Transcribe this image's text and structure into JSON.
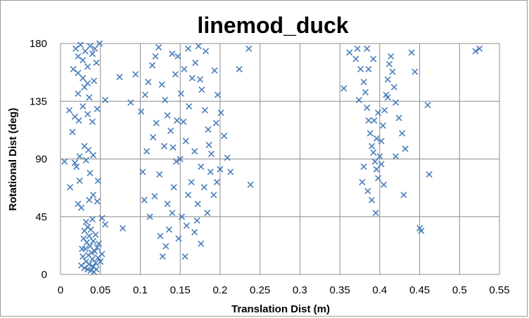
{
  "chart_data": {
    "type": "scatter",
    "title": "linemod_duck",
    "xlabel": "Translation Dist (m)",
    "ylabel": "Rotational Dist (deg)",
    "xlim": [
      0,
      0.55
    ],
    "ylim": [
      0,
      180
    ],
    "x_ticks": [
      "0",
      "0.05",
      "0.1",
      "0.15",
      "0.2",
      "0.25",
      "0.3",
      "0.35",
      "0.4",
      "0.45",
      "0.5",
      "0.55"
    ],
    "y_ticks": [
      "0",
      "45",
      "90",
      "135",
      "180"
    ],
    "grid": true,
    "legend": "none",
    "marker": "x",
    "marker_color": "#4a7ebb",
    "series": [
      {
        "points": [
          [
            0.03,
            5
          ],
          [
            0.034,
            4
          ],
          [
            0.038,
            3
          ],
          [
            0.041,
            6
          ],
          [
            0.036,
            8
          ],
          [
            0.032,
            10
          ],
          [
            0.04,
            12
          ],
          [
            0.044,
            9
          ],
          [
            0.028,
            14
          ],
          [
            0.035,
            15
          ],
          [
            0.039,
            17
          ],
          [
            0.043,
            18
          ],
          [
            0.031,
            20
          ],
          [
            0.037,
            22
          ],
          [
            0.046,
            21
          ],
          [
            0.033,
            25
          ],
          [
            0.041,
            26
          ],
          [
            0.029,
            28
          ],
          [
            0.036,
            30
          ],
          [
            0.044,
            31
          ],
          [
            0.03,
            34
          ],
          [
            0.038,
            35
          ],
          [
            0.047,
            13
          ],
          [
            0.05,
            10
          ],
          [
            0.052,
            16
          ],
          [
            0.026,
            7
          ],
          [
            0.048,
            24
          ],
          [
            0.034,
            37
          ],
          [
            0.042,
            2
          ],
          [
            0.045,
            4
          ],
          [
            0.032,
            41
          ],
          [
            0.04,
            43
          ],
          [
            0.056,
            39
          ],
          [
            0.078,
            36
          ],
          [
            0.022,
            55
          ],
          [
            0.026,
            52
          ],
          [
            0.036,
            58
          ],
          [
            0.046,
            57
          ],
          [
            0.052,
            44
          ],
          [
            0.027,
            20
          ],
          [
            0.024,
            73
          ],
          [
            0.037,
            79
          ],
          [
            0.032,
            89
          ],
          [
            0.047,
            73
          ],
          [
            0.024,
            92
          ],
          [
            0.03,
            100
          ],
          [
            0.035,
            97
          ],
          [
            0.041,
            93
          ],
          [
            0.015,
            111
          ],
          [
            0.023,
            120
          ],
          [
            0.028,
            131
          ],
          [
            0.034,
            125
          ],
          [
            0.04,
            119
          ],
          [
            0.046,
            129
          ],
          [
            0.018,
            123
          ],
          [
            0.022,
            141
          ],
          [
            0.03,
            146
          ],
          [
            0.036,
            138
          ],
          [
            0.042,
            151
          ],
          [
            0.056,
            136
          ],
          [
            0.016,
            160
          ],
          [
            0.022,
            157
          ],
          [
            0.028,
            167
          ],
          [
            0.034,
            162
          ],
          [
            0.04,
            172
          ],
          [
            0.045,
            165
          ],
          [
            0.019,
            176
          ],
          [
            0.025,
            179
          ],
          [
            0.031,
            174
          ],
          [
            0.037,
            178
          ],
          [
            0.043,
            176
          ],
          [
            0.049,
            180
          ],
          [
            0.022,
            170
          ],
          [
            0.028,
            153
          ],
          [
            0.034,
            149
          ],
          [
            0.011,
            128
          ],
          [
            0.005,
            88
          ],
          [
            0.018,
            87
          ],
          [
            0.074,
            154
          ],
          [
            0.094,
            156
          ],
          [
            0.012,
            68
          ],
          [
            0.02,
            84
          ],
          [
            0.041,
            62
          ]
        ]
      },
      {
        "points": [
          [
            0.103,
            80
          ],
          [
            0.105,
            58
          ],
          [
            0.112,
            45
          ],
          [
            0.118,
            61
          ],
          [
            0.124,
            78
          ],
          [
            0.128,
            14
          ],
          [
            0.132,
            22
          ],
          [
            0.136,
            35
          ],
          [
            0.14,
            48
          ],
          [
            0.142,
            68
          ],
          [
            0.145,
            88
          ],
          [
            0.148,
            28
          ],
          [
            0.152,
            45
          ],
          [
            0.156,
            14
          ],
          [
            0.158,
            38
          ],
          [
            0.16,
            62
          ],
          [
            0.164,
            72
          ],
          [
            0.168,
            33
          ],
          [
            0.172,
            55
          ],
          [
            0.176,
            24
          ],
          [
            0.18,
            68
          ],
          [
            0.184,
            48
          ],
          [
            0.188,
            80
          ],
          [
            0.192,
            62
          ],
          [
            0.196,
            72
          ],
          [
            0.101,
            127
          ],
          [
            0.106,
            140
          ],
          [
            0.11,
            150
          ],
          [
            0.115,
            163
          ],
          [
            0.119,
            170
          ],
          [
            0.123,
            177
          ],
          [
            0.127,
            148
          ],
          [
            0.131,
            136
          ],
          [
            0.134,
            124
          ],
          [
            0.138,
            112
          ],
          [
            0.141,
            99
          ],
          [
            0.144,
            156
          ],
          [
            0.147,
            170
          ],
          [
            0.151,
            141
          ],
          [
            0.154,
            119
          ],
          [
            0.157,
            104
          ],
          [
            0.161,
            131
          ],
          [
            0.165,
            153
          ],
          [
            0.169,
            165
          ],
          [
            0.173,
            178
          ],
          [
            0.177,
            144
          ],
          [
            0.181,
            128
          ],
          [
            0.185,
            113
          ],
          [
            0.189,
            94
          ],
          [
            0.193,
            159
          ],
          [
            0.197,
            140
          ],
          [
            0.201,
            126
          ],
          [
            0.205,
            108
          ],
          [
            0.209,
            91
          ],
          [
            0.213,
            80
          ],
          [
            0.224,
            160
          ],
          [
            0.236,
            176
          ],
          [
            0.238,
            70
          ],
          [
            0.088,
            134
          ],
          [
            0.15,
            90
          ],
          [
            0.168,
            96
          ],
          [
            0.176,
            84
          ],
          [
            0.186,
            101
          ],
          [
            0.12,
            118
          ],
          [
            0.13,
            100
          ],
          [
            0.14,
            172
          ],
          [
            0.16,
            176
          ],
          [
            0.182,
            174
          ],
          [
            0.108,
            96
          ],
          [
            0.116,
            107
          ],
          [
            0.2,
            82
          ],
          [
            0.195,
            118
          ],
          [
            0.175,
            152
          ],
          [
            0.146,
            120
          ],
          [
            0.155,
            160
          ],
          [
            0.125,
            30
          ],
          [
            0.134,
            55
          ],
          [
            0.171,
            42
          ]
        ]
      },
      {
        "points": [
          [
            0.355,
            145
          ],
          [
            0.362,
            173
          ],
          [
            0.37,
            168
          ],
          [
            0.372,
            176
          ],
          [
            0.376,
            160
          ],
          [
            0.38,
            150
          ],
          [
            0.382,
            142
          ],
          [
            0.384,
            130
          ],
          [
            0.386,
            120
          ],
          [
            0.388,
            110
          ],
          [
            0.39,
            100
          ],
          [
            0.392,
            95
          ],
          [
            0.394,
            88
          ],
          [
            0.396,
            82
          ],
          [
            0.398,
            75
          ],
          [
            0.4,
            92
          ],
          [
            0.402,
            104
          ],
          [
            0.404,
            116
          ],
          [
            0.406,
            128
          ],
          [
            0.408,
            140
          ],
          [
            0.41,
            152
          ],
          [
            0.412,
            164
          ],
          [
            0.414,
            170
          ],
          [
            0.416,
            158
          ],
          [
            0.418,
            146
          ],
          [
            0.42,
            134
          ],
          [
            0.424,
            122
          ],
          [
            0.428,
            110
          ],
          [
            0.432,
            98
          ],
          [
            0.385,
            65
          ],
          [
            0.39,
            58
          ],
          [
            0.395,
            48
          ],
          [
            0.405,
            70
          ],
          [
            0.38,
            84
          ],
          [
            0.378,
            72
          ],
          [
            0.43,
            62
          ],
          [
            0.44,
            173
          ],
          [
            0.444,
            158
          ],
          [
            0.45,
            36
          ],
          [
            0.452,
            34
          ],
          [
            0.46,
            132
          ],
          [
            0.462,
            78
          ],
          [
            0.392,
            168
          ],
          [
            0.398,
            126
          ],
          [
            0.384,
            176
          ],
          [
            0.374,
            136
          ],
          [
            0.42,
            92
          ],
          [
            0.396,
            106
          ],
          [
            0.402,
            86
          ],
          [
            0.41,
            138
          ],
          [
            0.386,
            160
          ],
          [
            0.393,
            120
          ],
          [
            0.52,
            174
          ],
          [
            0.525,
            176
          ]
        ]
      }
    ]
  }
}
